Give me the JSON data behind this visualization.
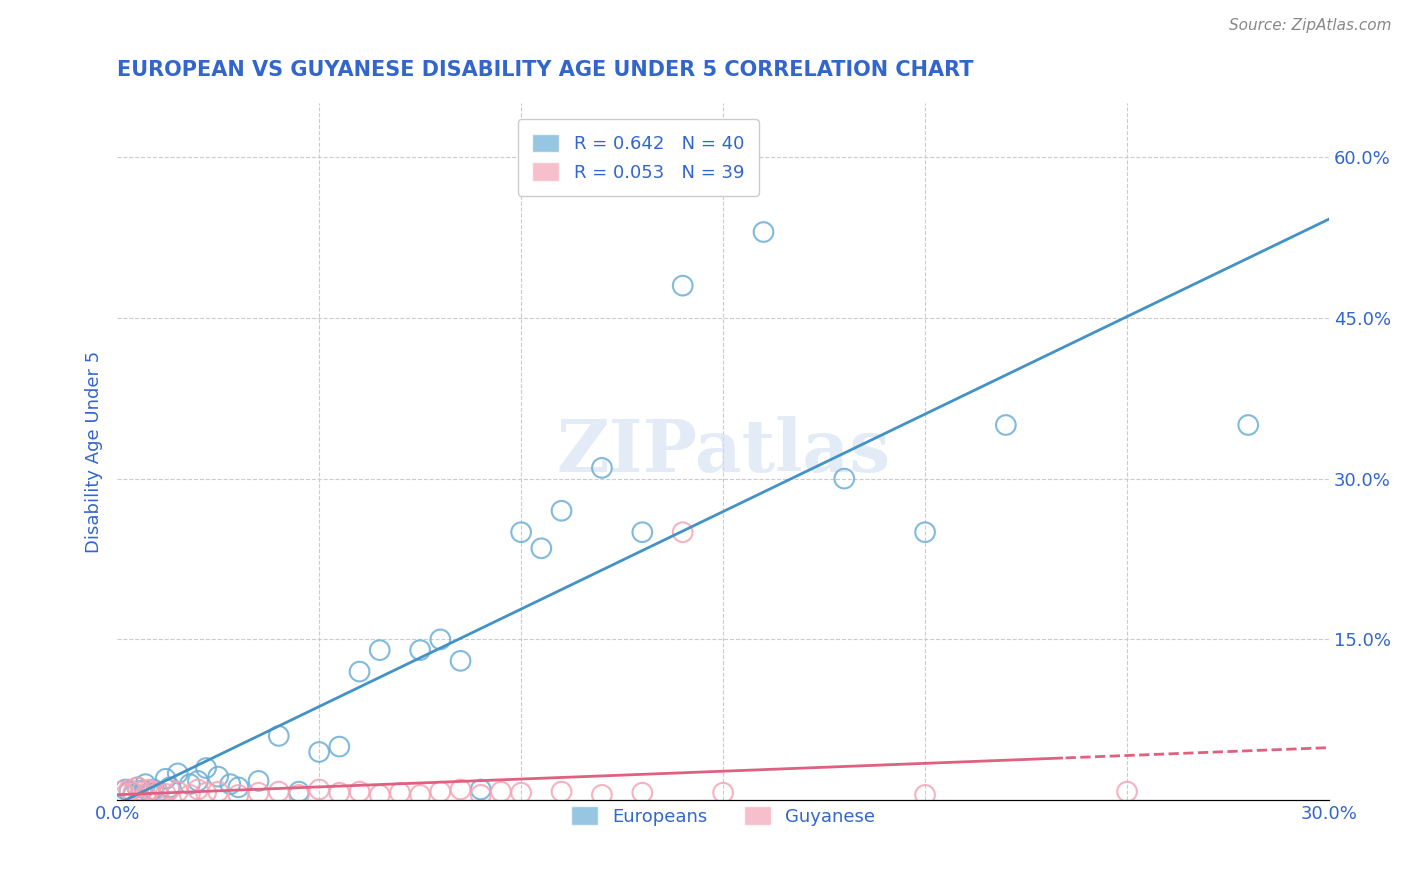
{
  "title": "EUROPEAN VS GUYANESE DISABILITY AGE UNDER 5 CORRELATION CHART",
  "source": "Source: ZipAtlas.com",
  "ylabel": "Disability Age Under 5",
  "xlim": [
    0.0,
    0.3
  ],
  "ylim": [
    0.0,
    0.65
  ],
  "y_ticks_right": [
    0.0,
    0.15,
    0.3,
    0.45,
    0.6
  ],
  "y_tick_labels_right": [
    "",
    "15.0%",
    "30.0%",
    "45.0%",
    "60.0%"
  ],
  "legend_r_european": "R = 0.642",
  "legend_n_european": "N = 40",
  "legend_r_guyanese": "R = 0.053",
  "legend_n_guyanese": "N = 39",
  "european_color": "#6baed6",
  "guyanese_color": "#f4a5b5",
  "trendline_european_color": "#4292c6",
  "trendline_guyanese_color": "#e06080",
  "background_color": "#ffffff",
  "grid_color": "#cccccc",
  "watermark": "ZIPatlas",
  "title_color": "#3366cc",
  "axis_label_color": "#3366cc",
  "tick_label_color": "#3366cc",
  "european_x": [
    0.002,
    0.003,
    0.004,
    0.005,
    0.006,
    0.007,
    0.008,
    0.009,
    0.01,
    0.012,
    0.013,
    0.015,
    0.018,
    0.02,
    0.022,
    0.025,
    0.028,
    0.03,
    0.035,
    0.04,
    0.045,
    0.05,
    0.055,
    0.06,
    0.065,
    0.075,
    0.08,
    0.085,
    0.09,
    0.1,
    0.105,
    0.11,
    0.12,
    0.13,
    0.14,
    0.16,
    0.18,
    0.2,
    0.22,
    0.28
  ],
  "european_y": [
    0.01,
    0.008,
    0.005,
    0.012,
    0.009,
    0.015,
    0.007,
    0.01,
    0.008,
    0.02,
    0.012,
    0.025,
    0.015,
    0.018,
    0.03,
    0.022,
    0.015,
    0.012,
    0.018,
    0.06,
    0.008,
    0.045,
    0.05,
    0.12,
    0.14,
    0.14,
    0.15,
    0.13,
    0.01,
    0.25,
    0.235,
    0.27,
    0.31,
    0.25,
    0.48,
    0.53,
    0.3,
    0.25,
    0.35,
    0.35
  ],
  "guyanese_x": [
    0.001,
    0.002,
    0.003,
    0.004,
    0.005,
    0.006,
    0.007,
    0.008,
    0.009,
    0.01,
    0.012,
    0.013,
    0.015,
    0.018,
    0.02,
    0.022,
    0.025,
    0.03,
    0.035,
    0.04,
    0.045,
    0.05,
    0.055,
    0.06,
    0.065,
    0.07,
    0.075,
    0.08,
    0.085,
    0.09,
    0.095,
    0.1,
    0.11,
    0.12,
    0.13,
    0.14,
    0.15,
    0.2,
    0.25
  ],
  "guyanese_y": [
    0.008,
    0.005,
    0.01,
    0.007,
    0.012,
    0.008,
    0.005,
    0.01,
    0.008,
    0.007,
    0.006,
    0.01,
    0.008,
    0.005,
    0.01,
    0.007,
    0.008,
    0.005,
    0.007,
    0.008,
    0.005,
    0.01,
    0.007,
    0.008,
    0.005,
    0.007,
    0.005,
    0.008,
    0.01,
    0.005,
    0.008,
    0.007,
    0.008,
    0.005,
    0.007,
    0.25,
    0.007,
    0.005,
    0.008
  ]
}
